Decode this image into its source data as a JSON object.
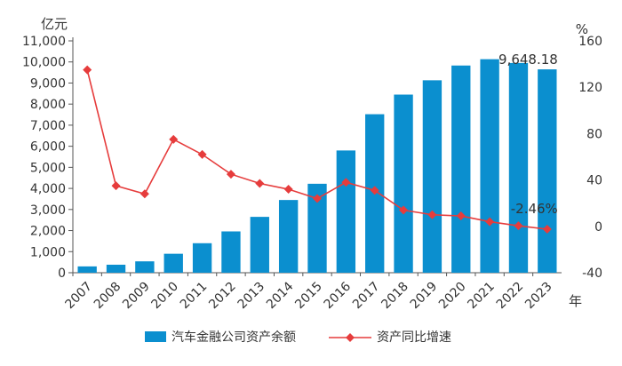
{
  "chart_data": {
    "type": "bar",
    "categories": [
      "2007",
      "2008",
      "2009",
      "2010",
      "2011",
      "2012",
      "2013",
      "2014",
      "2015",
      "2016",
      "2017",
      "2018",
      "2019",
      "2020",
      "2021",
      "2022",
      "2023"
    ],
    "left_axis": {
      "unit": "亿元",
      "range": [
        0,
        11000
      ],
      "ticks": [
        0,
        1000,
        2000,
        3000,
        4000,
        5000,
        6000,
        7000,
        8000,
        9000,
        10000,
        11000
      ],
      "tick_labels": [
        "0",
        "1,000",
        "2,000",
        "3,000",
        "4,000",
        "5,000",
        "6,000",
        "7,000",
        "8,000",
        "9,000",
        "10,000",
        "11,000"
      ]
    },
    "right_axis": {
      "unit": "%",
      "range": [
        -40,
        160
      ],
      "ticks": [
        -40,
        0,
        40,
        80,
        120,
        160
      ],
      "tick_labels": [
        "-40",
        "0",
        "40",
        "80",
        "120",
        "160"
      ]
    },
    "x_unit": "年",
    "grid": false,
    "legend_position": "bottom",
    "series": [
      {
        "name": "汽车金融公司资产余额",
        "type": "bar",
        "axis": "left",
        "color": "#0b8fcf",
        "values": [
          300,
          380,
          540,
          900,
          1400,
          1960,
          2650,
          3450,
          4220,
          5800,
          7520,
          8450,
          9130,
          9830,
          10130,
          9950,
          9648.18
        ]
      },
      {
        "name": "资产同比增速",
        "type": "line",
        "axis": "right",
        "color": "#e63c3c",
        "values": [
          135,
          35,
          28,
          75,
          62,
          45,
          37,
          32,
          24,
          38,
          31,
          14,
          10,
          9,
          4,
          0.5,
          -2.46
        ]
      }
    ],
    "annotations": [
      {
        "text": "9,648.18",
        "series": 0,
        "index": 16
      },
      {
        "text": "-2.46%",
        "series": 1,
        "index": 16
      }
    ]
  }
}
